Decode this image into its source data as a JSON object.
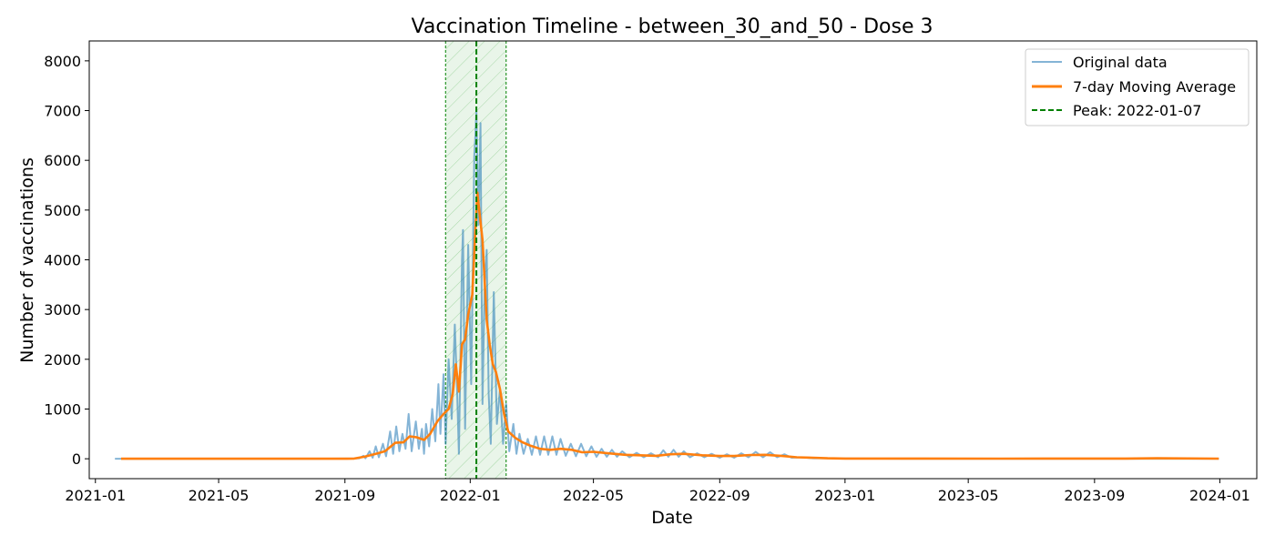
{
  "chart_data": {
    "type": "line",
    "title": "Vaccination Timeline - between_30_and_50 - Dose 3",
    "xlabel": "Date",
    "ylabel": "Number of vaccinations",
    "xlim": [
      "2020-12-26",
      "2024-02-06"
    ],
    "ylim": [
      -400,
      8400
    ],
    "x_ticks": [
      "2021-01",
      "2021-05",
      "2021-09",
      "2022-01",
      "2022-05",
      "2022-09",
      "2023-01",
      "2023-05",
      "2023-09",
      "2024-01"
    ],
    "y_ticks": [
      0,
      1000,
      2000,
      3000,
      4000,
      5000,
      6000,
      7000,
      8000
    ],
    "grid": false,
    "legend": {
      "placement": "top-right",
      "entries": [
        "Original data",
        "7-day Moving Average",
        "Peak: 2022-01-07"
      ]
    },
    "colors": {
      "original": "#1f77b4",
      "moving_average": "#ff7f0e",
      "peak": "#008000",
      "peak_window": "#2ca02c"
    },
    "peak": {
      "date": "2022-01-07",
      "window_start": "2021-12-08",
      "window_end": "2022-02-05"
    },
    "series": [
      {
        "name": "Original data",
        "points": [
          [
            "2021-01-20",
            0
          ],
          [
            "2021-02-15",
            0
          ],
          [
            "2021-04-01",
            0
          ],
          [
            "2021-06-01",
            0
          ],
          [
            "2021-08-01",
            0
          ],
          [
            "2021-09-10",
            5
          ],
          [
            "2021-09-15",
            10
          ],
          [
            "2021-09-19",
            60
          ],
          [
            "2021-09-21",
            10
          ],
          [
            "2021-09-25",
            150
          ],
          [
            "2021-09-28",
            20
          ],
          [
            "2021-10-01",
            250
          ],
          [
            "2021-10-04",
            30
          ],
          [
            "2021-10-08",
            300
          ],
          [
            "2021-10-11",
            50
          ],
          [
            "2021-10-15",
            550
          ],
          [
            "2021-10-18",
            100
          ],
          [
            "2021-10-21",
            650
          ],
          [
            "2021-10-24",
            150
          ],
          [
            "2021-10-27",
            500
          ],
          [
            "2021-10-30",
            200
          ],
          [
            "2021-11-02",
            900
          ],
          [
            "2021-11-05",
            150
          ],
          [
            "2021-11-09",
            750
          ],
          [
            "2021-11-12",
            200
          ],
          [
            "2021-11-15",
            600
          ],
          [
            "2021-11-17",
            100
          ],
          [
            "2021-11-19",
            700
          ],
          [
            "2021-11-22",
            250
          ],
          [
            "2021-11-25",
            1000
          ],
          [
            "2021-11-28",
            350
          ],
          [
            "2021-12-01",
            1500
          ],
          [
            "2021-12-03",
            500
          ],
          [
            "2021-12-06",
            1700
          ],
          [
            "2021-12-08",
            300
          ],
          [
            "2021-12-11",
            2000
          ],
          [
            "2021-12-14",
            800
          ],
          [
            "2021-12-17",
            2700
          ],
          [
            "2021-12-19",
            1500
          ],
          [
            "2021-12-21",
            100
          ],
          [
            "2021-12-24",
            4000
          ],
          [
            "2021-12-25",
            4600
          ],
          [
            "2021-12-27",
            600
          ],
          [
            "2021-12-30",
            4300
          ],
          [
            "2022-01-02",
            1500
          ],
          [
            "2022-01-05",
            6100
          ],
          [
            "2022-01-06",
            6500
          ],
          [
            "2022-01-07",
            7000
          ],
          [
            "2022-01-09",
            4700
          ],
          [
            "2022-01-11",
            6750
          ],
          [
            "2022-01-13",
            1100
          ],
          [
            "2022-01-15",
            3400
          ],
          [
            "2022-01-17",
            4200
          ],
          [
            "2022-01-19",
            1300
          ],
          [
            "2022-01-21",
            300
          ],
          [
            "2022-01-24",
            3350
          ],
          [
            "2022-01-27",
            700
          ],
          [
            "2022-01-30",
            1400
          ],
          [
            "2022-02-02",
            300
          ],
          [
            "2022-02-05",
            1100
          ],
          [
            "2022-02-08",
            150
          ],
          [
            "2022-02-12",
            700
          ],
          [
            "2022-02-15",
            100
          ],
          [
            "2022-02-18",
            500
          ],
          [
            "2022-02-22",
            100
          ],
          [
            "2022-02-26",
            400
          ],
          [
            "2022-03-02",
            80
          ],
          [
            "2022-03-06",
            450
          ],
          [
            "2022-03-10",
            80
          ],
          [
            "2022-03-14",
            450
          ],
          [
            "2022-03-18",
            80
          ],
          [
            "2022-03-22",
            450
          ],
          [
            "2022-03-26",
            80
          ],
          [
            "2022-03-30",
            400
          ],
          [
            "2022-04-04",
            60
          ],
          [
            "2022-04-09",
            300
          ],
          [
            "2022-04-14",
            50
          ],
          [
            "2022-04-19",
            300
          ],
          [
            "2022-04-24",
            50
          ],
          [
            "2022-04-29",
            250
          ],
          [
            "2022-05-04",
            40
          ],
          [
            "2022-05-09",
            200
          ],
          [
            "2022-05-14",
            40
          ],
          [
            "2022-05-19",
            180
          ],
          [
            "2022-05-24",
            40
          ],
          [
            "2022-05-29",
            150
          ],
          [
            "2022-06-05",
            30
          ],
          [
            "2022-06-12",
            120
          ],
          [
            "2022-06-19",
            30
          ],
          [
            "2022-06-26",
            110
          ],
          [
            "2022-07-03",
            30
          ],
          [
            "2022-07-08",
            170
          ],
          [
            "2022-07-13",
            40
          ],
          [
            "2022-07-18",
            180
          ],
          [
            "2022-07-23",
            40
          ],
          [
            "2022-07-28",
            150
          ],
          [
            "2022-08-03",
            30
          ],
          [
            "2022-08-10",
            110
          ],
          [
            "2022-08-17",
            30
          ],
          [
            "2022-08-24",
            100
          ],
          [
            "2022-09-01",
            20
          ],
          [
            "2022-09-08",
            90
          ],
          [
            "2022-09-15",
            20
          ],
          [
            "2022-09-22",
            110
          ],
          [
            "2022-09-29",
            30
          ],
          [
            "2022-10-06",
            140
          ],
          [
            "2022-10-13",
            30
          ],
          [
            "2022-10-20",
            130
          ],
          [
            "2022-10-27",
            30
          ],
          [
            "2022-11-03",
            90
          ],
          [
            "2022-11-10",
            20
          ],
          [
            "2022-11-20",
            30
          ],
          [
            "2022-12-01",
            10
          ],
          [
            "2022-12-15",
            10
          ],
          [
            "2023-01-10",
            5
          ],
          [
            "2023-03-01",
            0
          ],
          [
            "2023-06-01",
            0
          ],
          [
            "2023-09-01",
            0
          ],
          [
            "2023-12-31",
            0
          ]
        ]
      },
      {
        "name": "7-day Moving Average",
        "points": [
          [
            "2021-01-26",
            0
          ],
          [
            "2021-05-01",
            0
          ],
          [
            "2021-09-01",
            0
          ],
          [
            "2021-09-10",
            5
          ],
          [
            "2021-09-20",
            40
          ],
          [
            "2021-10-01",
            100
          ],
          [
            "2021-10-10",
            150
          ],
          [
            "2021-10-20",
            320
          ],
          [
            "2021-10-28",
            330
          ],
          [
            "2021-11-03",
            450
          ],
          [
            "2021-11-10",
            430
          ],
          [
            "2021-11-17",
            380
          ],
          [
            "2021-11-23",
            500
          ],
          [
            "2021-11-30",
            750
          ],
          [
            "2021-12-06",
            900
          ],
          [
            "2021-12-11",
            1000
          ],
          [
            "2021-12-15",
            1300
          ],
          [
            "2021-12-18",
            1900
          ],
          [
            "2021-12-21",
            1350
          ],
          [
            "2021-12-24",
            2300
          ],
          [
            "2021-12-27",
            2400
          ],
          [
            "2021-12-30",
            2900
          ],
          [
            "2022-01-03",
            3300
          ],
          [
            "2022-01-06",
            4600
          ],
          [
            "2022-01-08",
            5350
          ],
          [
            "2022-01-10",
            4950
          ],
          [
            "2022-01-13",
            4400
          ],
          [
            "2022-01-17",
            2800
          ],
          [
            "2022-01-20",
            2300
          ],
          [
            "2022-01-23",
            1900
          ],
          [
            "2022-01-26",
            1750
          ],
          [
            "2022-01-30",
            1400
          ],
          [
            "2022-02-03",
            900
          ],
          [
            "2022-02-07",
            550
          ],
          [
            "2022-02-14",
            420
          ],
          [
            "2022-02-21",
            330
          ],
          [
            "2022-03-01",
            260
          ],
          [
            "2022-03-10",
            200
          ],
          [
            "2022-03-20",
            180
          ],
          [
            "2022-03-30",
            200
          ],
          [
            "2022-04-10",
            180
          ],
          [
            "2022-04-20",
            130
          ],
          [
            "2022-05-01",
            140
          ],
          [
            "2022-05-15",
            110
          ],
          [
            "2022-06-01",
            80
          ],
          [
            "2022-06-15",
            70
          ],
          [
            "2022-07-01",
            60
          ],
          [
            "2022-07-15",
            90
          ],
          [
            "2022-07-28",
            100
          ],
          [
            "2022-08-15",
            70
          ],
          [
            "2022-09-01",
            55
          ],
          [
            "2022-09-15",
            55
          ],
          [
            "2022-10-01",
            75
          ],
          [
            "2022-10-15",
            80
          ],
          [
            "2022-11-01",
            55
          ],
          [
            "2022-11-15",
            30
          ],
          [
            "2022-12-01",
            20
          ],
          [
            "2022-12-15",
            10
          ],
          [
            "2023-01-01",
            5
          ],
          [
            "2023-06-01",
            2
          ],
          [
            "2023-10-01",
            5
          ],
          [
            "2023-11-01",
            10
          ],
          [
            "2023-12-31",
            3
          ]
        ]
      }
    ]
  }
}
